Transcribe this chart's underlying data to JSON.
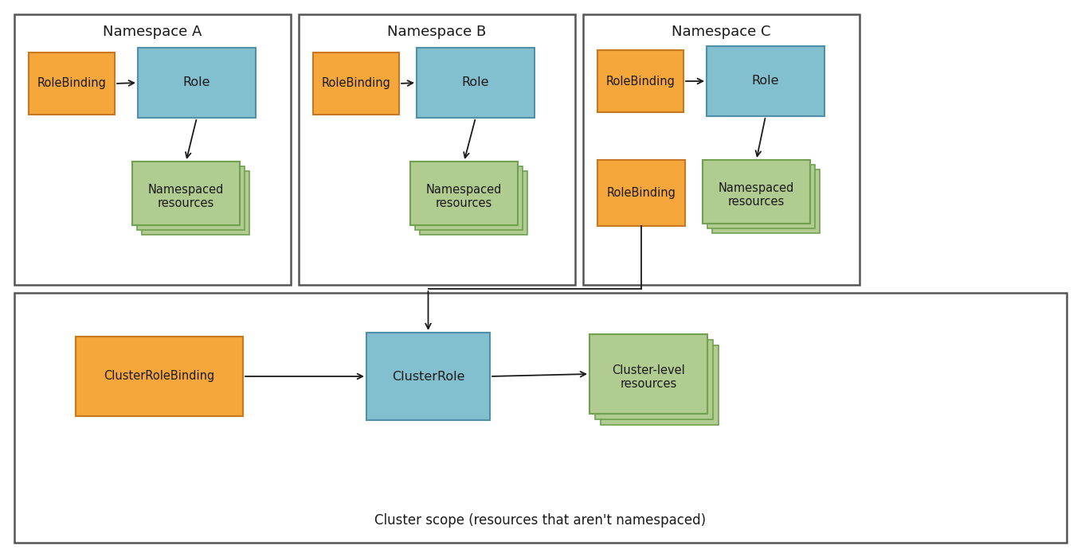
{
  "bg_color": "#ffffff",
  "orange": "#F5A73B",
  "orange_edge": "#C87820",
  "blue": "#82C0D0",
  "blue_edge": "#5090A8",
  "green": "#B0CC90",
  "green_edge": "#70A050",
  "text_color": "#1a1a1a",
  "ns_border": "#555555",
  "cluster_border": "#555555",
  "namespaces": [
    "Namespace A",
    "Namespace B",
    "Namespace C"
  ],
  "cluster_label": "Cluster scope (resources that aren't namespaced)",
  "font_size_box": 10.5,
  "font_size_ns": 13,
  "font_size_cluster_label": 12
}
